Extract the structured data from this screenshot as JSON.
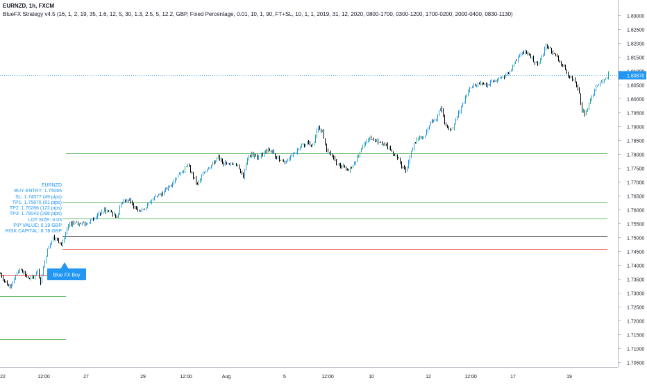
{
  "header": {
    "symbol_line": "EURNZD, 1h, FXCM",
    "strategy_line": "BlueFX Strategy v4.5 (16, 1, 2, 19, 35, 1.6, 12, 5, 30, 1.3, 2.5, 5, 12.2, GBP, Fixed Percentage, 0.01, 10, 1, 90, FT+SL, 10, 1, 1, 2019, 31, 12, 2020, 0800-1700, 0300-1200, 1700-0200, 2000-0400, 0830-1130)"
  },
  "info_panel": {
    "symbol": "EURNZD",
    "buy_entry": "BUY ENTRY: 1.75065",
    "sl": "SL: 1.74577 (49 pips)",
    "tp1": "TP1: 1.75676 (61 pips)",
    "tp2": "TP2: 1.76286 (122 pips)",
    "tp3": "TP3: 1.78043 (298 pips)",
    "lot_size": "LOT SIZE: 0.03",
    "pip_value": "PIP VALUE: 0.19 GBP",
    "risk_capital": "RISK CAPITAL: 8.78 GBP"
  },
  "signal_label": "Blue FX Buy",
  "colors": {
    "bull": "#26a69a",
    "bull_blue": "#2196f3",
    "bear": "#000000",
    "tp_line": "#4caf50",
    "sl_line": "#ef5350",
    "entry_line": "#000000",
    "price_line": "#2196f3",
    "axis_text": "#131722"
  },
  "chart_data": {
    "type": "candlestick",
    "symbol": "EURNZD",
    "timeframe": "1h",
    "source": "FXCM",
    "ylim": [
      1.7025,
      1.8325
    ],
    "y_ticks": [
      "1.70500",
      "1.71000",
      "1.71500",
      "1.72000",
      "1.72500",
      "1.73000",
      "1.73500",
      "1.74000",
      "1.74500",
      "1.75000",
      "1.75500",
      "1.76000",
      "1.76500",
      "1.77000",
      "1.77500",
      "1.78000",
      "1.78500",
      "1.79000",
      "1.79500",
      "1.80000",
      "1.80500",
      "1.81000",
      "1.81500",
      "1.82000",
      "1.82500",
      "1.83000"
    ],
    "x_ticks": [
      "22",
      "12:00",
      "27",
      "29",
      "12:00",
      "Aug",
      "5",
      "12:00",
      "10",
      "12",
      "12:00",
      "17",
      "19"
    ],
    "last_price": "1.80870",
    "levels": [
      {
        "name": "SL",
        "value": 1.74577,
        "kind": "sl"
      },
      {
        "name": "BUY ENTRY",
        "value": 1.75065,
        "kind": "entry"
      },
      {
        "name": "TP1",
        "value": 1.75676,
        "kind": "tp"
      },
      {
        "name": "TP2",
        "value": 1.76286,
        "kind": "tp"
      },
      {
        "name": "TP3",
        "value": 1.78043,
        "kind": "tp"
      },
      {
        "name": "prior SL",
        "value": 1.73641,
        "kind": "sl"
      },
      {
        "name": "prior TP1",
        "value": 1.72877,
        "kind": "tp"
      },
      {
        "name": "prior TP2",
        "value": 1.71327,
        "kind": "tp"
      }
    ],
    "price_path": [
      [
        0,
        1.737
      ],
      [
        6,
        1.7345
      ],
      [
        12,
        1.7325
      ],
      [
        18,
        1.734
      ],
      [
        24,
        1.7375
      ],
      [
        30,
        1.739
      ],
      [
        36,
        1.7365
      ],
      [
        42,
        1.735
      ],
      [
        48,
        1.736
      ],
      [
        54,
        1.738
      ],
      [
        58,
        1.7335
      ],
      [
        62,
        1.739
      ],
      [
        66,
        1.744
      ],
      [
        70,
        1.747
      ],
      [
        76,
        1.7505
      ],
      [
        82,
        1.749
      ],
      [
        88,
        1.748
      ],
      [
        92,
        1.75
      ],
      [
        98,
        1.754
      ],
      [
        104,
        1.7555
      ],
      [
        110,
        1.755
      ],
      [
        116,
        1.7555
      ],
      [
        124,
        1.7545
      ],
      [
        130,
        1.7565
      ],
      [
        140,
        1.758
      ],
      [
        150,
        1.76
      ],
      [
        160,
        1.759
      ],
      [
        168,
        1.7575
      ],
      [
        174,
        1.7625
      ],
      [
        182,
        1.764
      ],
      [
        192,
        1.7615
      ],
      [
        200,
        1.76
      ],
      [
        208,
        1.7605
      ],
      [
        216,
        1.763
      ],
      [
        224,
        1.765
      ],
      [
        232,
        1.7655
      ],
      [
        238,
        1.767
      ],
      [
        246,
        1.769
      ],
      [
        254,
        1.772
      ],
      [
        262,
        1.774
      ],
      [
        270,
        1.776
      ],
      [
        278,
        1.772
      ],
      [
        284,
        1.769
      ],
      [
        290,
        1.772
      ],
      [
        298,
        1.775
      ],
      [
        306,
        1.7765
      ],
      [
        314,
        1.779
      ],
      [
        320,
        1.777
      ],
      [
        330,
        1.776
      ],
      [
        340,
        1.7765
      ],
      [
        346,
        1.774
      ],
      [
        350,
        1.772
      ],
      [
        356,
        1.779
      ],
      [
        362,
        1.78
      ],
      [
        370,
        1.779
      ],
      [
        378,
        1.78
      ],
      [
        386,
        1.782
      ],
      [
        394,
        1.78
      ],
      [
        402,
        1.778
      ],
      [
        410,
        1.777
      ],
      [
        418,
        1.779
      ],
      [
        426,
        1.781
      ],
      [
        434,
        1.783
      ],
      [
        442,
        1.784
      ],
      [
        450,
        1.783
      ],
      [
        458,
        1.79
      ],
      [
        464,
        1.788
      ],
      [
        470,
        1.782
      ],
      [
        478,
        1.779
      ],
      [
        486,
        1.776
      ],
      [
        494,
        1.7755
      ],
      [
        500,
        1.774
      ],
      [
        508,
        1.776
      ],
      [
        516,
        1.78
      ],
      [
        524,
        1.784
      ],
      [
        532,
        1.786
      ],
      [
        540,
        1.785
      ],
      [
        548,
        1.7845
      ],
      [
        556,
        1.783
      ],
      [
        564,
        1.781
      ],
      [
        572,
        1.779
      ],
      [
        578,
        1.776
      ],
      [
        584,
        1.774
      ],
      [
        590,
        1.779
      ],
      [
        596,
        1.784
      ],
      [
        604,
        1.786
      ],
      [
        612,
        1.787
      ],
      [
        620,
        1.792
      ],
      [
        628,
        1.793
      ],
      [
        634,
        1.797
      ],
      [
        640,
        1.792
      ],
      [
        646,
        1.789
      ],
      [
        652,
        1.79
      ],
      [
        660,
        1.795
      ],
      [
        668,
        1.799
      ],
      [
        676,
        1.804
      ],
      [
        684,
        1.805
      ],
      [
        692,
        1.806
      ],
      [
        700,
        1.805
      ],
      [
        708,
        1.806
      ],
      [
        716,
        1.807
      ],
      [
        724,
        1.808
      ],
      [
        732,
        1.809
      ],
      [
        740,
        1.813
      ],
      [
        748,
        1.8155
      ],
      [
        756,
        1.817
      ],
      [
        762,
        1.816
      ],
      [
        768,
        1.814
      ],
      [
        774,
        1.812
      ],
      [
        780,
        1.815
      ],
      [
        786,
        1.819
      ],
      [
        792,
        1.818
      ],
      [
        798,
        1.816
      ],
      [
        804,
        1.814
      ],
      [
        810,
        1.812
      ],
      [
        816,
        1.809
      ],
      [
        822,
        1.808
      ],
      [
        828,
        1.806
      ],
      [
        834,
        1.802
      ],
      [
        838,
        1.796
      ],
      [
        842,
        1.795
      ],
      [
        848,
        1.798
      ],
      [
        854,
        1.802
      ],
      [
        860,
        1.805
      ],
      [
        866,
        1.806
      ],
      [
        872,
        1.807
      ],
      [
        876,
        1.8087
      ]
    ]
  }
}
